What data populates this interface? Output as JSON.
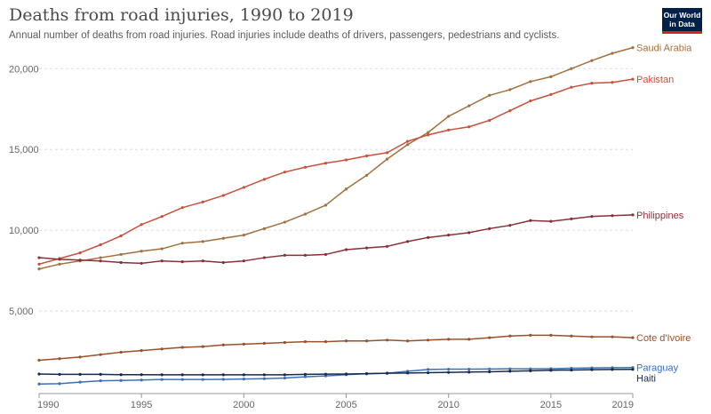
{
  "header": {
    "title": "Deaths from road injuries, 1990 to 2019",
    "subtitle": "Annual number of deaths from road injuries. Road injuries include deaths of drivers, passengers, pedestrians and cyclists.",
    "logo_line1": "Our World",
    "logo_line2": "in Data"
  },
  "colors": {
    "Saudi Arabia": "#a2703f",
    "Pakistan": "#c9503c",
    "Philippines": "#883039",
    "Cote d'Ivoire": "#9a5129",
    "Paraguay": "#3c70b6",
    "Haiti": "#18294e",
    "grid": "#dddddd",
    "axis": "#999999"
  },
  "chart_data": {
    "type": "line",
    "x": [
      1990,
      1991,
      1992,
      1993,
      1994,
      1995,
      1996,
      1997,
      1998,
      1999,
      2000,
      2001,
      2002,
      2003,
      2004,
      2005,
      2006,
      2007,
      2008,
      2009,
      2010,
      2011,
      2012,
      2013,
      2014,
      2015,
      2016,
      2017,
      2018,
      2019
    ],
    "x_ticks": [
      1990,
      1995,
      2000,
      2005,
      2010,
      2015,
      2019
    ],
    "y_ticks": [
      0,
      5000,
      10000,
      15000,
      20000
    ],
    "y_tick_labels": [
      "0",
      "5,000",
      "10,000",
      "15,000",
      "20,000"
    ],
    "xlim": [
      1990,
      2019
    ],
    "ylim": [
      0,
      21500
    ],
    "grid": "horizontal dashed",
    "legend": "labels at right end of lines",
    "series": [
      {
        "name": "Saudi Arabia",
        "values": [
          7600,
          7900,
          8100,
          8300,
          8500,
          8700,
          8850,
          9200,
          9300,
          9500,
          9700,
          10100,
          10500,
          11000,
          11550,
          12550,
          13400,
          14400,
          15300,
          16050,
          17050,
          17700,
          18350,
          18700,
          19200,
          19500,
          20000,
          20500,
          20950,
          21300
        ]
      },
      {
        "name": "Pakistan",
        "values": [
          7900,
          8250,
          8600,
          9100,
          9650,
          10350,
          10850,
          11400,
          11750,
          12150,
          12650,
          13150,
          13600,
          13900,
          14150,
          14350,
          14600,
          14800,
          15500,
          15900,
          16200,
          16400,
          16800,
          17400,
          18000,
          18400,
          18850,
          19100,
          19150,
          19350
        ]
      },
      {
        "name": "Philippines",
        "values": [
          8300,
          8200,
          8150,
          8100,
          8000,
          7950,
          8100,
          8050,
          8100,
          8000,
          8100,
          8300,
          8450,
          8450,
          8500,
          8800,
          8900,
          9000,
          9300,
          9550,
          9700,
          9850,
          10100,
          10300,
          10600,
          10550,
          10700,
          10850,
          10900,
          10950
        ]
      },
      {
        "name": "Cote d'Ivoire",
        "values": [
          1950,
          2050,
          2150,
          2300,
          2450,
          2550,
          2650,
          2750,
          2800,
          2900,
          2950,
          3000,
          3050,
          3100,
          3100,
          3150,
          3150,
          3200,
          3150,
          3200,
          3250,
          3250,
          3350,
          3450,
          3500,
          3500,
          3450,
          3400,
          3400,
          3350
        ]
      },
      {
        "name": "Paraguay",
        "values": [
          480,
          500,
          600,
          680,
          700,
          730,
          760,
          760,
          760,
          770,
          790,
          810,
          850,
          930,
          980,
          1060,
          1120,
          1150,
          1270,
          1380,
          1400,
          1400,
          1410,
          1420,
          1420,
          1430,
          1460,
          1480,
          1490,
          1500
        ]
      },
      {
        "name": "Haiti",
        "values": [
          1100,
          1080,
          1080,
          1080,
          1060,
          1060,
          1050,
          1050,
          1050,
          1050,
          1050,
          1050,
          1050,
          1080,
          1090,
          1100,
          1120,
          1150,
          1160,
          1180,
          1200,
          1220,
          1240,
          1270,
          1300,
          1330,
          1350,
          1370,
          1380,
          1390
        ]
      }
    ]
  }
}
